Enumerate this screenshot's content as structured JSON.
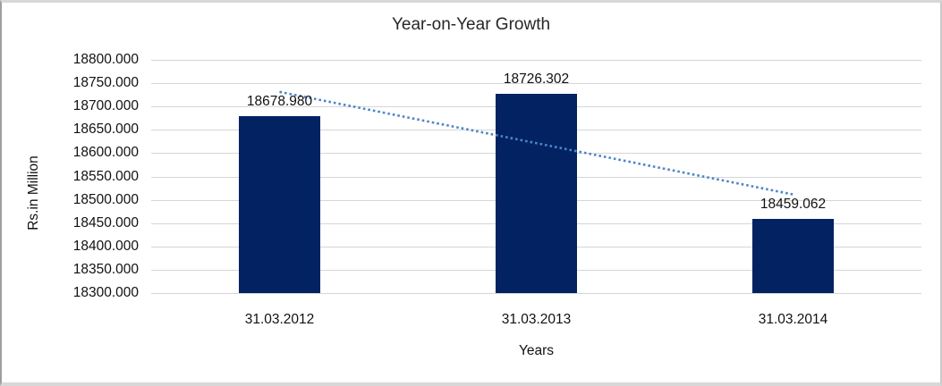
{
  "chart_data": {
    "type": "bar",
    "title": "Year-on-Year Growth",
    "categories": [
      "31.03.2012",
      "31.03.2013",
      "31.03.2014"
    ],
    "values": [
      18678.98,
      18726.302,
      18459.062
    ],
    "data_labels": [
      "18678.980",
      "18726.302",
      "18459.062"
    ],
    "xlabel": "Years",
    "ylabel": "Rs.in Million",
    "ylim": [
      18300,
      18800
    ],
    "ytick_step": 50,
    "ytick_labels": [
      "18800.000",
      "18750.000",
      "18700.000",
      "18650.000",
      "18600.000",
      "18550.000",
      "18500.000",
      "18450.000",
      "18400.000",
      "18350.000",
      "18300.000"
    ],
    "grid": true,
    "legend": false,
    "bar_color": "#022262",
    "gridline_color": "#D6D6D6",
    "text_color": "#111111",
    "trendline": {
      "type": "linear",
      "style": "dotted",
      "color": "#4F86C9",
      "start_value": 18731.41,
      "end_value": 18511.49
    }
  }
}
